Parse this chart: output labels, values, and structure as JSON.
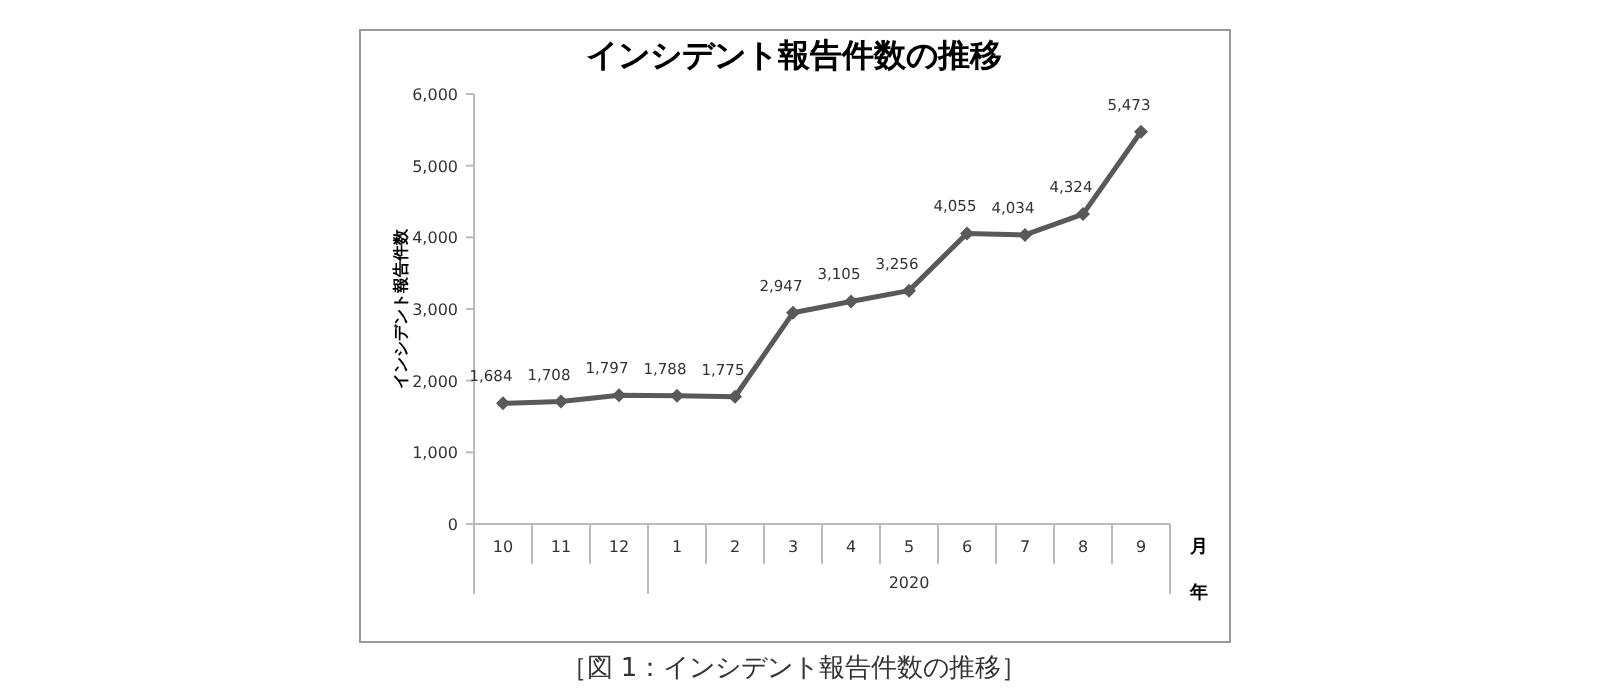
{
  "chart_data": {
    "type": "line",
    "title": "インシデント報告件数の推移",
    "ylabel": "インシデント報告件数",
    "xlabel": "月",
    "categories": [
      "10",
      "11",
      "12",
      "1",
      "2",
      "3",
      "4",
      "5",
      "6",
      "7",
      "8",
      "9"
    ],
    "series": [
      {
        "color": "#595959",
        "values": [
          1684,
          1708,
          1797,
          1788,
          1775,
          2947,
          3105,
          3256,
          4055,
          4034,
          4324,
          5473
        ],
        "value_labels": [
          "1,684",
          "1,708",
          "1,797",
          "1,788",
          "1,775",
          "2,947",
          "3,105",
          "3,256",
          "4,055",
          "4,034",
          "4,324",
          "5,473"
        ]
      }
    ],
    "ylim": [
      0,
      6000
    ],
    "yticks": [
      {
        "value": 0,
        "label": "0"
      },
      {
        "value": 1000,
        "label": "1,000"
      },
      {
        "value": 2000,
        "label": "2,000"
      },
      {
        "value": 3000,
        "label": "3,000"
      },
      {
        "value": 4000,
        "label": "4,000"
      },
      {
        "value": 5000,
        "label": "5,000"
      },
      {
        "value": 6000,
        "label": "6,000"
      }
    ],
    "marker": "diamond",
    "line_style": "solid",
    "grid": false,
    "annotations": [
      "2020",
      "年",
      "［図 1：インシデント報告件数の推移］"
    ]
  }
}
